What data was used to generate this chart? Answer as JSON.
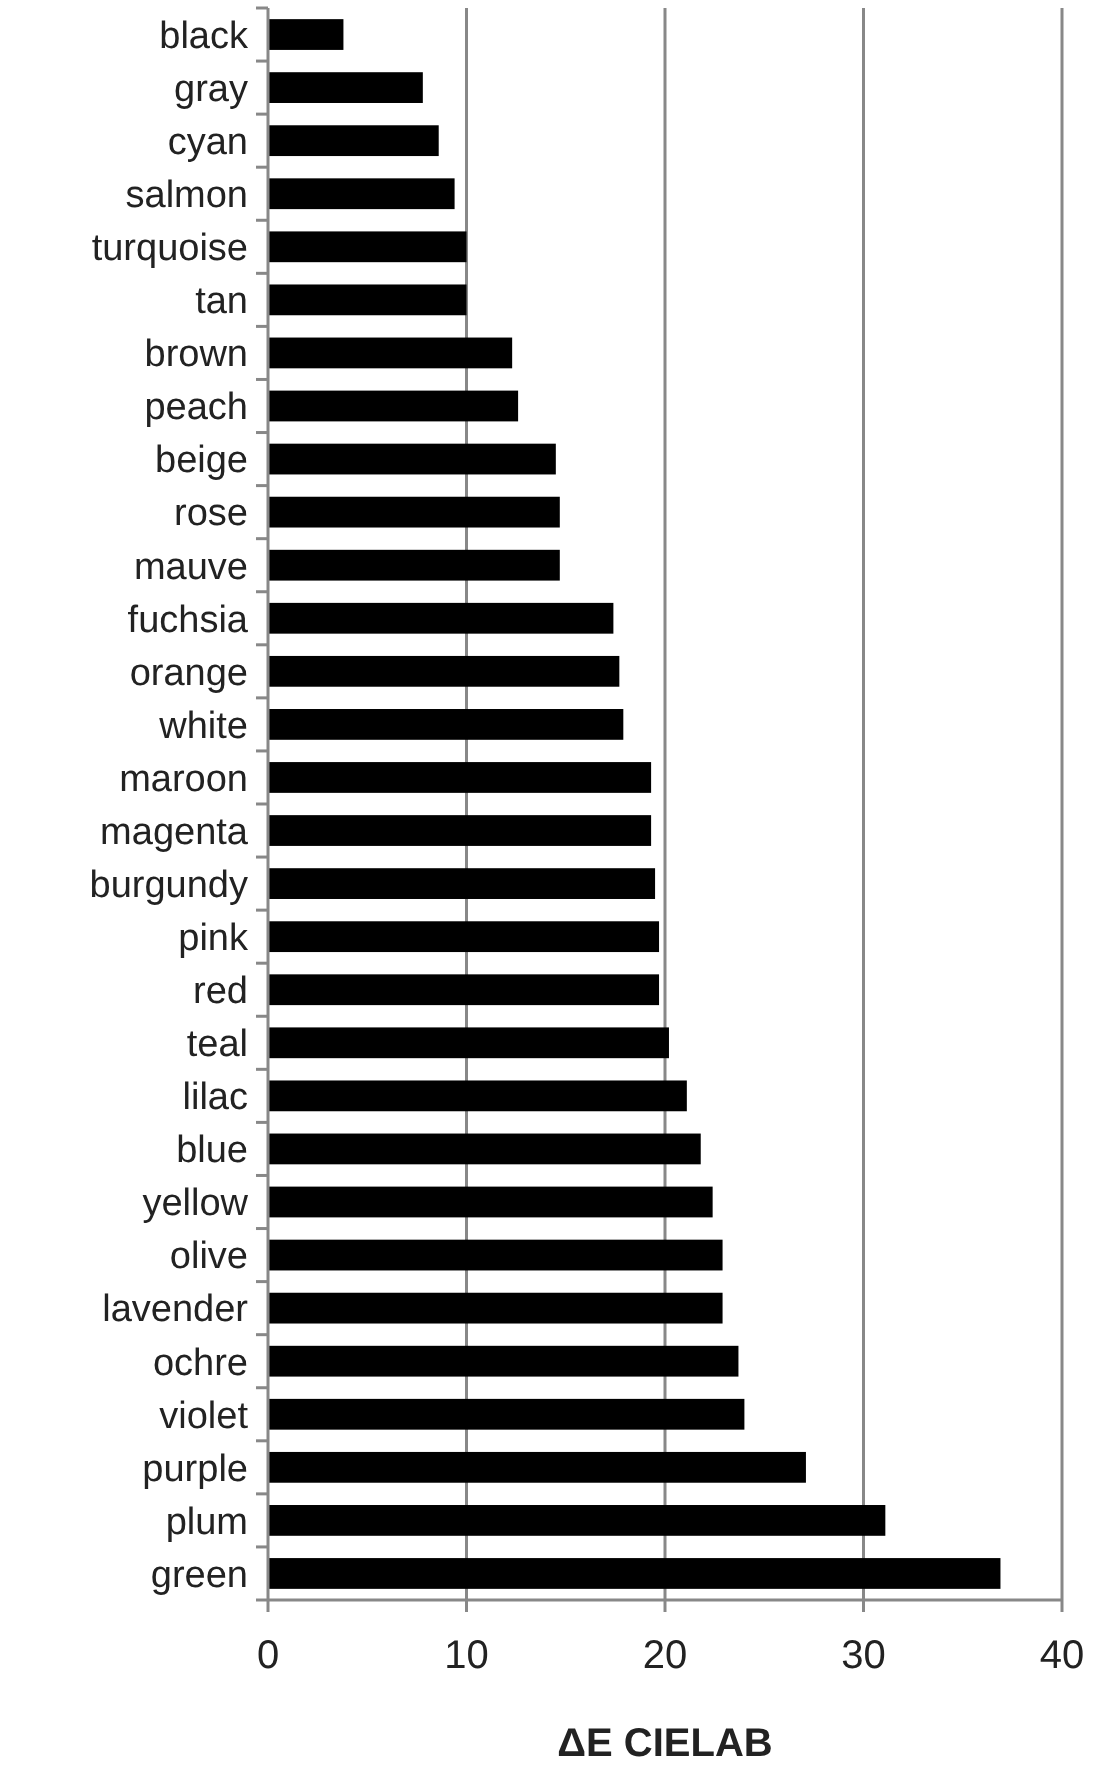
{
  "chart_data": {
    "type": "bar",
    "orientation": "horizontal",
    "xlabel": "ΔE CIELAB",
    "categories": [
      "black",
      "gray",
      "cyan",
      "salmon",
      "turquoise",
      "tan",
      "brown",
      "peach",
      "beige",
      "rose",
      "mauve",
      "fuchsia",
      "orange",
      "white",
      "maroon",
      "magenta",
      "burgundy",
      "pink",
      "red",
      "teal",
      "lilac",
      "blue",
      "yellow",
      "olive",
      "lavender",
      "ochre",
      "violet",
      "purple",
      "plum",
      "green"
    ],
    "values": [
      3.8,
      7.8,
      8.6,
      9.4,
      10.0,
      10.0,
      12.3,
      12.6,
      14.5,
      14.7,
      14.7,
      17.4,
      17.7,
      17.9,
      19.3,
      19.3,
      19.5,
      19.7,
      19.7,
      20.2,
      21.1,
      21.8,
      22.4,
      22.9,
      22.9,
      23.7,
      24.0,
      27.1,
      31.1,
      36.9
    ],
    "color": "#000000",
    "xlim": [
      0,
      40
    ],
    "xticks": [
      0,
      10,
      20,
      30,
      40
    ],
    "grid": "x"
  }
}
